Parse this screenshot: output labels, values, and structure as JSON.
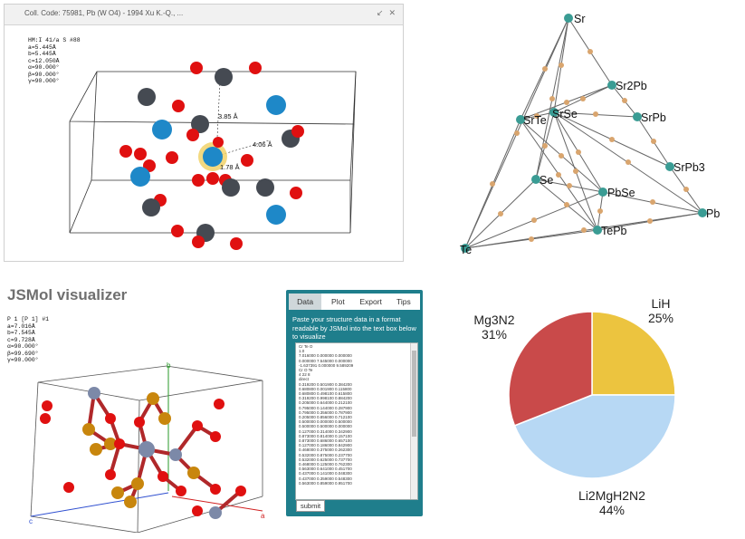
{
  "jsmol_top": {
    "title": "Coll. Code: 75981, Pb (W O4) - 1994 Xu K.-Q., ...",
    "window_icons": [
      "↙",
      "✕"
    ],
    "cell_info": [
      "HM:I 41/a S #88",
      "a=5.445Å",
      "b=5.445Å",
      "c=12.050Å",
      "α=90.000°",
      "β=90.000°",
      "γ=90.000°"
    ],
    "measurements": [
      "3.85 Å",
      "4.06 Å",
      "1.78 Å"
    ],
    "colors": {
      "oxygen": "#e01010",
      "lead": "#454a52",
      "tungsten": "#1e88c8",
      "highlight": "#f0d060"
    }
  },
  "phase_diagram": {
    "nodes": [
      "Sr",
      "Sr2Pb",
      "SrPb",
      "SrPb3",
      "Pb",
      "PbSe",
      "TePb",
      "Te",
      "Se",
      "SrTe",
      "SrSe"
    ],
    "colors": {
      "node": "#3a9c94",
      "midpoint": "#d9a56e",
      "line": "#666666"
    }
  },
  "jsmol_bottom": {
    "heading": "JSMol visualizer",
    "cell_info": [
      "P 1 [P 1] #1",
      "a=7.016Å",
      "b=7.545Å",
      "c=9.728Å",
      "α=90.000°",
      "β=99.690°",
      "γ=90.000°"
    ],
    "axis_labels": [
      "b",
      "a",
      "c"
    ],
    "colors": {
      "oxygen": "#e01010",
      "cr": "#7c89a8",
      "te": "#c8860d"
    }
  },
  "input_panel": {
    "tabs": [
      "Data",
      "Plot",
      "Export",
      "Tips"
    ],
    "active_tab": "Data",
    "instructions": "Paste your structure data in a format readable by JSMol into the text box below to visualize",
    "textbox_lines": [
      "Cr Te O",
      "1.0",
      "7.016000 0.000000 0.000000",
      "0.000000 7.545000 0.000000",
      "-1.637391 0.000000 9.589209",
      "Cr O Te",
      "4 22 8",
      "direct",
      "0.319200 0.501900 0.384200",
      "0.680800 0.001900 0.115800",
      "0.680800 0.498100 0.615800",
      "0.319200 0.998100 0.884200",
      "0.205000 0.644000 0.212100",
      "0.795000 0.144000 0.287900",
      "0.795000 0.356000 0.787900",
      "0.205000 0.856000 0.712100",
      "0.500000 0.000000 0.500000",
      "0.500000 0.500000 0.000000",
      "0.127000 0.314000 0.342900",
      "0.873000 0.814000 0.157100",
      "0.873000 0.686000 0.657100",
      "0.127000 0.186000 0.842900",
      "0.468000 0.375000 0.262300",
      "0.532000 0.875000 0.237700",
      "0.532000 0.625000 0.737700",
      "0.468000 0.125000 0.762300",
      "0.563000 0.641000 0.451700",
      "0.437000 0.141000 0.048300",
      "0.437000 0.359000 0.548300",
      "0.563000 0.859000 0.951700"
    ],
    "submit_label": "submit",
    "colors": {
      "panel": "#1f7e8c",
      "active_tab": "#cfd7da"
    }
  },
  "chart_data": {
    "type": "pie",
    "slices": [
      {
        "label": "LiH",
        "value": 25,
        "text": "25%",
        "color": "#ecc43f"
      },
      {
        "label": "Li2MgH2N2",
        "value": 44,
        "text": "44%",
        "color": "#b7d8f4"
      },
      {
        "label": "Mg3N2",
        "value": 31,
        "text": "31%",
        "color": "#c94a4a"
      }
    ]
  }
}
